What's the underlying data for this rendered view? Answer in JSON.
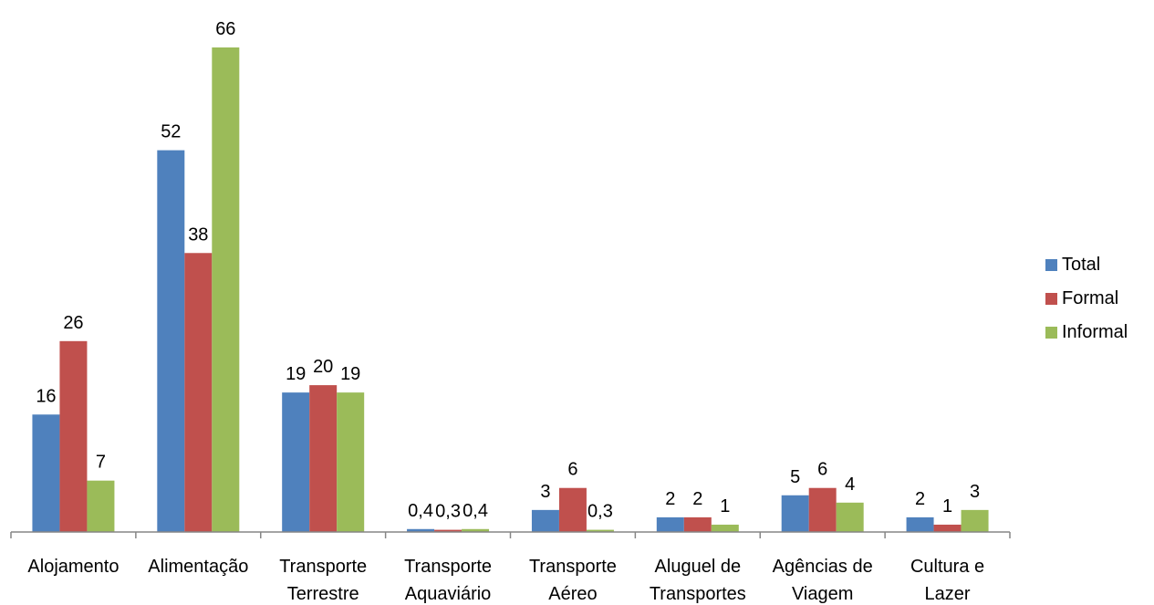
{
  "chart_data": {
    "type": "bar",
    "title": "",
    "xlabel": "",
    "ylabel": "",
    "ylim": [
      0,
      70
    ],
    "grid": false,
    "legend_position": "right",
    "categories": [
      [
        "Alojamento"
      ],
      [
        "Alimentação"
      ],
      [
        "Transporte",
        "Terrestre"
      ],
      [
        "Transporte",
        "Aquaviário"
      ],
      [
        "Transporte",
        "Aéreo"
      ],
      [
        "Aluguel de",
        "Transportes"
      ],
      [
        "Agências de",
        "Viagem"
      ],
      [
        "Cultura e",
        "Lazer"
      ]
    ],
    "series": [
      {
        "name": "Total",
        "color": "#4F81BD",
        "values": [
          16,
          52,
          19,
          0.4,
          3,
          2,
          5,
          2
        ],
        "labels": [
          "16",
          "52",
          "19",
          "0,4",
          "3",
          "2",
          "5",
          "2"
        ]
      },
      {
        "name": "Formal",
        "color": "#C0504D",
        "values": [
          26,
          38,
          20,
          0.3,
          6,
          2,
          6,
          1
        ],
        "labels": [
          "26",
          "38",
          "20",
          "0,3",
          "6",
          "2",
          "6",
          "1"
        ]
      },
      {
        "name": "Informal",
        "color": "#9BBB59",
        "values": [
          7,
          66,
          19,
          0.4,
          0.3,
          1,
          4,
          3
        ],
        "labels": [
          "7",
          "66",
          "19",
          "0,4",
          "0,3",
          "1",
          "4",
          "3"
        ]
      }
    ]
  }
}
